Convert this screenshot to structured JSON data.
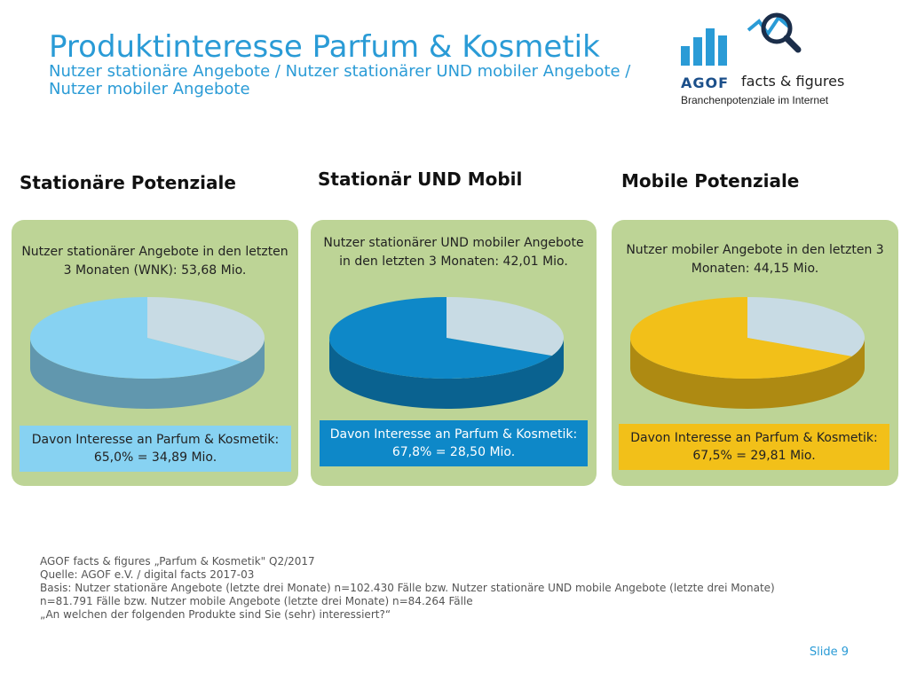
{
  "header": {
    "title": "Produktinteresse Parfum & Kosmetik",
    "subtitle": "Nutzer stationäre Angebote / Nutzer stationärer UND mobiler Angebote / Nutzer mobiler Angebote"
  },
  "logo": {
    "brand": "AGOF",
    "product": "facts & figures",
    "tagline": "Branchenpotenziale im Internet"
  },
  "panels": [
    {
      "heading": "Stationäre Potenziale",
      "description": "Nutzer stationärer Angebote in den letzten 3 Monaten (WNK): 53,68 Mio.",
      "result": "Davon Interesse an Parfum & Kosmetik: 65,0% = 34,89 Mio.",
      "share": 0.65,
      "color": "#87d2f2",
      "rest_color": "#c8dbe4",
      "result_bg": "#87d2f2",
      "result_text": "#222222"
    },
    {
      "heading": "Stationär UND Mobil",
      "description": "Nutzer stationärer UND mobiler Angebote in den letzten 3 Monaten: 42,01 Mio.",
      "result": "Davon Interesse an Parfum & Kosmetik: 67,8% = 28,50 Mio.",
      "share": 0.678,
      "color": "#0e88c8",
      "rest_color": "#c8dbe4",
      "result_bg": "#0e88c8",
      "result_text": "#ffffff"
    },
    {
      "heading": "Mobile Potenziale",
      "description": "Nutzer mobiler Angebote in den letzten 3 Monaten: 44,15 Mio.",
      "result": "Davon Interesse an Parfum & Kosmetik: 67,5% = 29,81 Mio.",
      "share": 0.675,
      "color": "#f2c019",
      "rest_color": "#c8dbe4",
      "result_bg": "#f2c019",
      "result_text": "#222222"
    }
  ],
  "footnotes": [
    "AGOF facts & figures „Parfum & Kosmetik\" Q2/2017",
    "Quelle: AGOF e.V. / digital facts 2017-03",
    "Basis: Nutzer stationäre Angebote (letzte drei Monate) n=102.430 Fälle bzw. Nutzer stationäre UND mobile Angebote (letzte drei Monate)",
    "n=81.791 Fälle bzw. Nutzer mobile Angebote (letzte drei Monate) n=84.264 Fälle",
    "„An welchen der folgenden Produkte sind Sie (sehr) interessiert?“"
  ],
  "slide_label": "Slide 9",
  "colors": {
    "accent": "#2a9bd6",
    "panel_bg": "#bdd496",
    "brand_dark": "#1b4f8a"
  }
}
